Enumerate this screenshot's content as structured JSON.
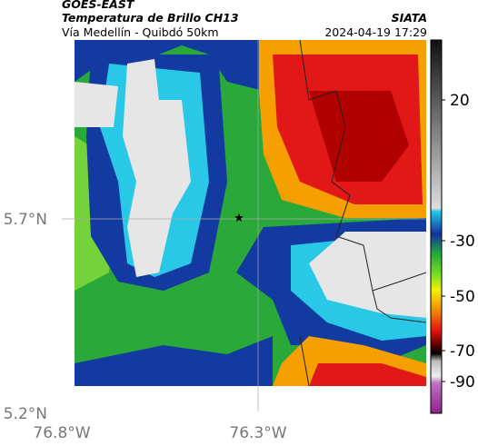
{
  "header": {
    "title": "GOES-EAST",
    "subtitle": "Temperatura de Brillo CH13",
    "location": "Vía Medellín - Quibdó 50km",
    "source": "SIATA",
    "timestamp": "2024-04-19 17:29"
  },
  "axes": {
    "lat_ticks": [
      "5.7°N",
      "5.2°N"
    ],
    "lon_ticks": [
      "76.8°W",
      "76.3°W"
    ]
  },
  "colorbar": {
    "ticks": [
      "20",
      "-30",
      "-50",
      "-70",
      "-90"
    ]
  }
}
